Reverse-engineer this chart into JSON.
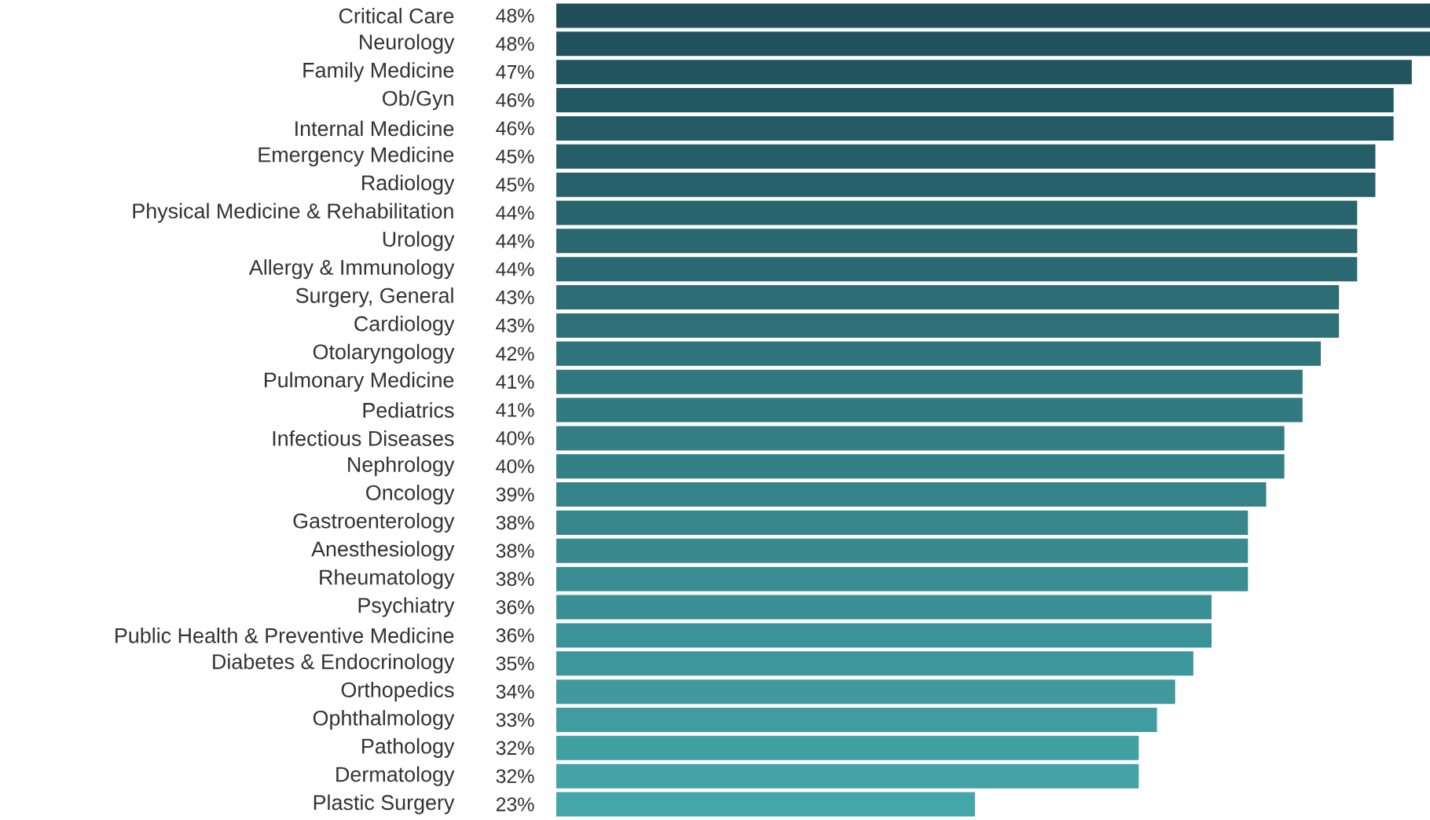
{
  "chart_data": {
    "type": "bar",
    "orientation": "horizontal",
    "categories": [
      "Critical Care",
      "Neurology",
      "Family Medicine",
      "Ob/Gyn",
      "Internal Medicine",
      "Emergency Medicine",
      "Radiology",
      "Physical Medicine & Rehabilitation",
      "Urology",
      "Allergy & Immunology",
      "Surgery, General",
      "Cardiology",
      "Otolaryngology",
      "Pulmonary Medicine",
      "Pediatrics",
      "Infectious Diseases",
      "Nephrology",
      "Oncology",
      "Gastroenterology",
      "Anesthesiology",
      "Rheumatology",
      "Psychiatry",
      "Public Health & Preventive Medicine",
      "Diabetes & Endocrinology",
      "Orthopedics",
      "Ophthalmology",
      "Pathology",
      "Dermatology",
      "Plastic Surgery"
    ],
    "values": [
      48,
      48,
      47,
      46,
      46,
      45,
      45,
      44,
      44,
      44,
      43,
      43,
      42,
      41,
      41,
      40,
      40,
      39,
      38,
      38,
      38,
      36,
      36,
      35,
      34,
      33,
      32,
      32,
      23
    ],
    "value_labels": [
      "48%",
      "48%",
      "47%",
      "46%",
      "46%",
      "45%",
      "45%",
      "44%",
      "44%",
      "44%",
      "43%",
      "43%",
      "42%",
      "41%",
      "41%",
      "40%",
      "40%",
      "39%",
      "38%",
      "38%",
      "38%",
      "36%",
      "36%",
      "35%",
      "34%",
      "33%",
      "32%",
      "32%",
      "23%"
    ],
    "colors": [
      "#1f4e5a",
      "#20515d",
      "#225460",
      "#235762",
      "#245b65",
      "#265e68",
      "#27616b",
      "#28646e",
      "#2a6770",
      "#2b6a73",
      "#2c6d76",
      "#2e7179",
      "#2f747b",
      "#30777e",
      "#327a81",
      "#337d84",
      "#348087",
      "#358389",
      "#37868c",
      "#388a8f",
      "#398d92",
      "#3b9095",
      "#3c9397",
      "#3d969a",
      "#3f999d",
      "#409ca0",
      "#41a0a2",
      "#43a3a5",
      "#44a6a8"
    ],
    "xlim": [
      0,
      48
    ]
  }
}
